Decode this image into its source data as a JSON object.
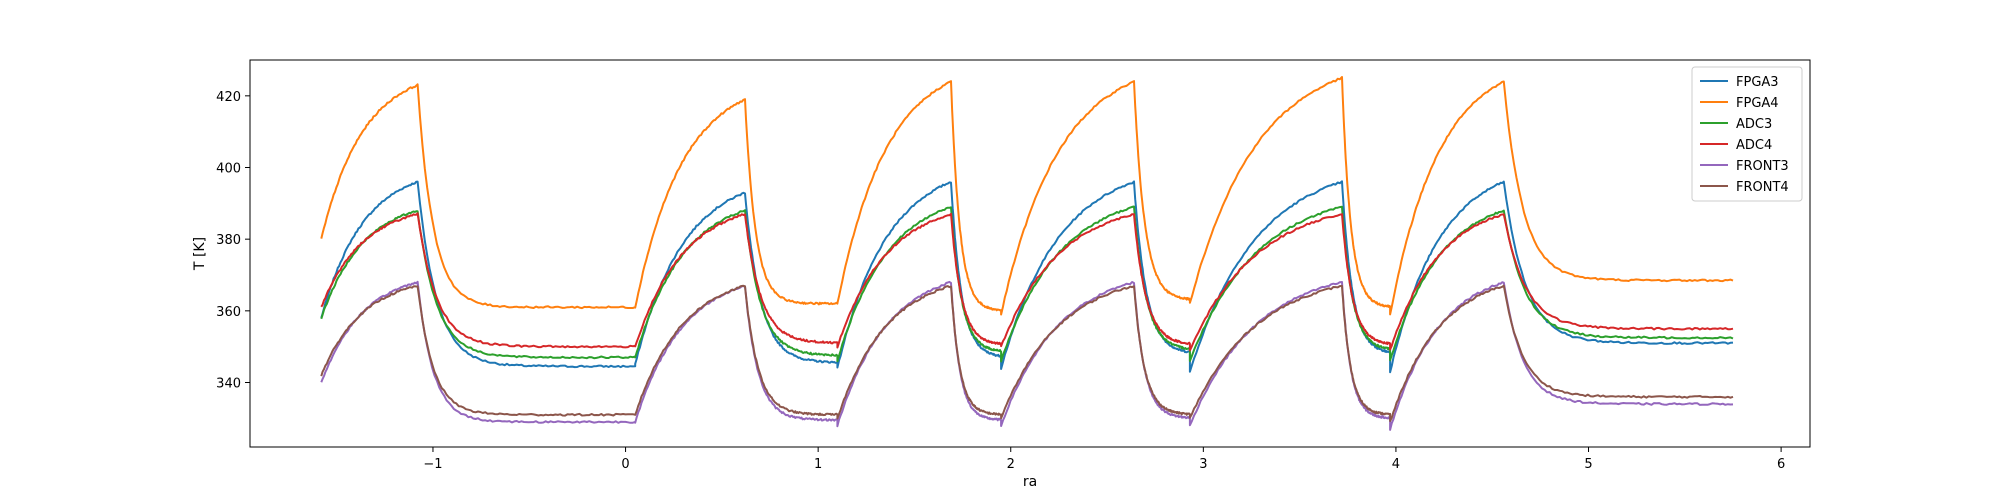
{
  "chart_data": {
    "type": "line",
    "title": "",
    "xlabel": "ra",
    "ylabel": "T [K]",
    "xlim": [
      -1.95,
      6.15
    ],
    "ylim": [
      322,
      430
    ],
    "xticks": [
      -1,
      0,
      1,
      2,
      3,
      4,
      5,
      6
    ],
    "xtick_labels": [
      "−1",
      "0",
      "1",
      "2",
      "3",
      "4",
      "5",
      "6"
    ],
    "yticks": [
      340,
      360,
      380,
      400,
      420
    ],
    "ytick_labels": [
      "340",
      "360",
      "380",
      "400",
      "420"
    ],
    "grid": false,
    "legend_position": "top-right",
    "cycles": [
      {
        "start": -1.58,
        "peak": -1.08,
        "end": 0.05
      },
      {
        "start": 0.05,
        "peak": 0.62,
        "end": 1.1
      },
      {
        "start": 1.1,
        "peak": 1.69,
        "end": 1.95
      },
      {
        "start": 1.95,
        "peak": 2.64,
        "end": 2.93
      },
      {
        "start": 2.93,
        "peak": 3.72,
        "end": 3.97
      },
      {
        "start": 3.97,
        "peak": 4.56,
        "end": 5.75
      }
    ],
    "series": [
      {
        "name": "FPGA3",
        "color": "#1f77b4",
        "start": [
          358,
          345,
          344,
          344,
          343,
          343
        ],
        "peak": [
          396,
          393,
          396,
          396,
          396,
          396
        ],
        "floor": [
          344.5,
          345.5,
          347,
          348,
          348,
          351
        ],
        "drop": [
          0.22,
          0.18,
          0.12,
          0.14,
          0.12,
          0.25
        ]
      },
      {
        "name": "FPGA4",
        "color": "#ff7f0e",
        "start": [
          380,
          361,
          362,
          359,
          362,
          359
        ],
        "peak": [
          423,
          419,
          424,
          424,
          425,
          424
        ],
        "floor": [
          361,
          362,
          360,
          363,
          361,
          368.5
        ],
        "drop": [
          0.18,
          0.12,
          0.1,
          0.12,
          0.1,
          0.22
        ]
      },
      {
        "name": "ADC3",
        "color": "#2ca02c",
        "start": [
          358,
          347,
          346,
          346,
          346,
          346
        ],
        "peak": [
          388,
          388,
          389,
          389,
          389,
          388
        ],
        "floor": [
          347,
          347.5,
          348.5,
          349,
          349,
          352.5
        ],
        "drop": [
          0.22,
          0.18,
          0.12,
          0.14,
          0.12,
          0.25
        ]
      },
      {
        "name": "ADC4",
        "color": "#d62728",
        "start": [
          361,
          350,
          350,
          350,
          349,
          349
        ],
        "peak": [
          387,
          387,
          387,
          387,
          387,
          387
        ],
        "floor": [
          350,
          351,
          350.5,
          350.5,
          350.5,
          355
        ],
        "drop": [
          0.22,
          0.18,
          0.12,
          0.14,
          0.12,
          0.25
        ]
      },
      {
        "name": "FRONT3",
        "color": "#9467bd",
        "start": [
          340,
          329,
          328,
          328,
          328,
          327
        ],
        "peak": [
          368,
          367,
          368,
          368,
          368,
          368
        ],
        "floor": [
          329,
          329.5,
          329.5,
          330,
          330,
          334
        ],
        "drop": [
          0.18,
          0.15,
          0.1,
          0.12,
          0.1,
          0.22
        ]
      },
      {
        "name": "FRONT4",
        "color": "#8c564b",
        "start": [
          342,
          331,
          330,
          330,
          330,
          329
        ],
        "peak": [
          367,
          367,
          367,
          367,
          367,
          367
        ],
        "floor": [
          331,
          331,
          331,
          331,
          331,
          336
        ],
        "drop": [
          0.18,
          0.15,
          0.1,
          0.12,
          0.1,
          0.22
        ]
      }
    ]
  }
}
